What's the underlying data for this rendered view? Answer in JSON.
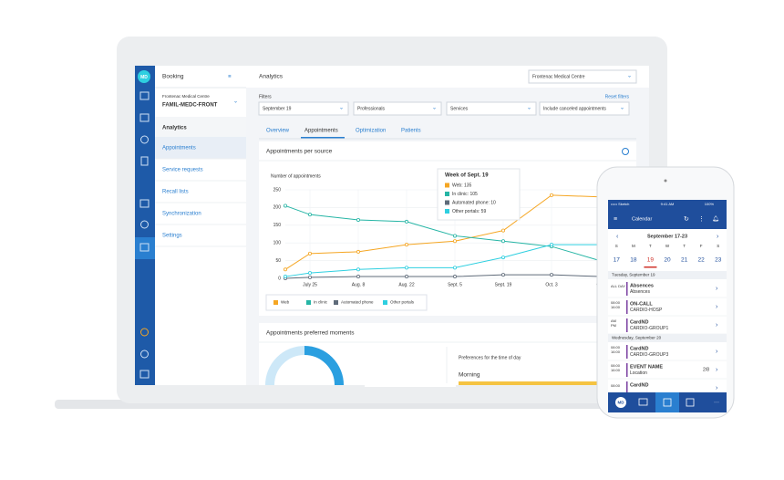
{
  "laptop": {
    "logo": "MD",
    "nav_title": "Booking",
    "clinic": "Frontenac Medical Centre",
    "clinic_code": "FAMIL-MEDC-FRONT",
    "section": "Analytics",
    "nav_items": [
      "Appointments",
      "Service requests",
      "Recall lists",
      "Synchronization",
      "Settings"
    ],
    "page_title": "Analytics",
    "clinic_select": "Frontenac Medical Centre",
    "filters_label": "Filters",
    "reset": "Reset filters",
    "filters": [
      "September 19",
      "Professionals",
      "Services",
      "Include canceled appointments"
    ],
    "tabs": [
      "Overview",
      "Appointments",
      "Optimization",
      "Patients"
    ],
    "active_tab": 1,
    "chart": {
      "type": "line",
      "title": "Appointments per source",
      "y_label": "Number of appointments",
      "categories": [
        null,
        "July 25",
        "Aug. 8",
        "Aug. 22",
        "Sept. 5",
        "Sept. 19",
        "Oct. 3",
        "Oct"
      ],
      "series": [
        {
          "name": "Web",
          "color": "#f5a623",
          "values": [
            25,
            70,
            75,
            95,
            105,
            135,
            235,
            230
          ]
        },
        {
          "name": "In clinic",
          "color": "#26b5a5",
          "values": [
            205,
            180,
            165,
            160,
            120,
            105,
            90,
            50
          ]
        },
        {
          "name": "Automated phone",
          "color": "#5f6b7a",
          "values": [
            0,
            3,
            5,
            5,
            5,
            10,
            10,
            5
          ]
        },
        {
          "name": "Other portals",
          "color": "#2ecfe0",
          "values": [
            5,
            15,
            25,
            30,
            30,
            59,
            95,
            95
          ]
        }
      ],
      "ylim": [
        0,
        250
      ],
      "yticks": [
        0,
        50,
        100,
        150,
        200,
        250
      ],
      "grid": true,
      "tooltip": {
        "title": "Week of Sept. 19",
        "items": [
          "Web: 135",
          "In clinic: 105",
          "Automated phone: 10",
          "Other portals: 59"
        ]
      }
    },
    "moments_title": "Appointments preferred moments",
    "pref_title": "Preferences for the time of day",
    "pref_item": "Morning"
  },
  "phone": {
    "carrier": "••••• Sketch",
    "clock": "9:41 AM",
    "battery": "100%",
    "header": "Calendar",
    "week": "September 17-23",
    "weekdays": [
      "S",
      "M",
      "T",
      "W",
      "T",
      "F",
      "S"
    ],
    "dates": [
      "17",
      "18",
      "19",
      "20",
      "21",
      "22",
      "23"
    ],
    "today_index": 2,
    "days": [
      {
        "label": "Tuesday, September 19",
        "events": [
          {
            "time": [
              "ALL DAY"
            ],
            "title": "Absences",
            "sub": "Absences"
          },
          {
            "time": [
              "08:00",
              "16:00"
            ],
            "title": "ON-CALL",
            "sub": "CARDIO-HOSP"
          },
          {
            "time": [
              "AM",
              "PM"
            ],
            "title": "CardND",
            "sub": "CARDIO-GROUP1"
          }
        ]
      },
      {
        "label": "Wednesday, September 20",
        "events": [
          {
            "time": [
              "08:00",
              "16:00"
            ],
            "title": "CardND",
            "sub": "CARDIO-GROUP3"
          },
          {
            "time": [
              "08:00",
              "16:00"
            ],
            "title": "EVENT NAME",
            "sub": "Location",
            "badge": "2/8"
          },
          {
            "time": [
              "08:00"
            ],
            "title": "CardND"
          }
        ]
      }
    ],
    "tab_logo": "MD"
  }
}
